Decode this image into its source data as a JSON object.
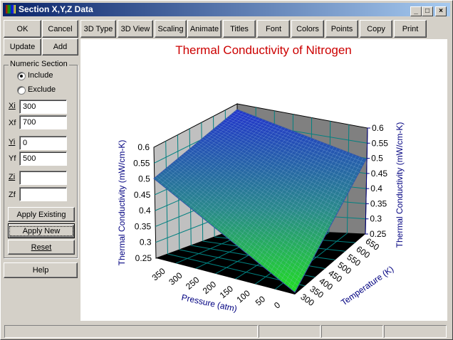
{
  "window": {
    "title": "Section X,Y,Z Data",
    "minimize": "_",
    "maximize": "□",
    "close": "×"
  },
  "left": {
    "ok": "OK",
    "cancel": "Cancel",
    "update": "Update",
    "add": "Add",
    "group_label": "Numeric Section",
    "include": "Include",
    "exclude": "Exclude",
    "include_selected": true,
    "fields": [
      {
        "label": "Xi",
        "value": "300"
      },
      {
        "label": "Xf",
        "value": "700"
      },
      {
        "label": "Yi",
        "value": "0"
      },
      {
        "label": "Yf",
        "value": "500"
      },
      {
        "label": "Zi",
        "value": ""
      },
      {
        "label": "Zf",
        "value": ""
      }
    ],
    "apply_existing": "Apply Existing",
    "apply_new": "Apply New",
    "reset": "Reset",
    "help": "Help"
  },
  "toolbar": [
    "3D Type",
    "3D View",
    "Scaling",
    "Animate",
    "Titles",
    "Font",
    "Colors",
    "Points",
    "Copy",
    "Print"
  ],
  "chart_data": {
    "type": "surface3d",
    "title": "Thermal Conductivity of Nitrogen",
    "title_color": "#cc0000",
    "xlabel": "Pressure (atm)",
    "ylabel": "Temperature (K)",
    "zlabel": "Thermal Conductivity (mW/cm-K)",
    "x_ticks": [
      "350",
      "300",
      "250",
      "200",
      "150",
      "100",
      "50",
      "0"
    ],
    "y_ticks": [
      "300",
      "350",
      "400",
      "450",
      "500",
      "550",
      "600",
      "650"
    ],
    "z_ticks": [
      "0.25",
      "0.3",
      "0.35",
      "0.4",
      "0.45",
      "0.5",
      "0.55",
      "0.6"
    ],
    "xlim": [
      0,
      375
    ],
    "ylim": [
      300,
      660
    ],
    "zlim": [
      0.25,
      0.6
    ],
    "corner_values": {
      "p0_t300": 0.25,
      "p375_t300": 0.5,
      "p375_t660": 0.6,
      "p0_t660": 0.47
    },
    "colors": {
      "low": "#22dd22",
      "high": "#2233cc",
      "walls": "#c0c0c0",
      "floor": "#000000",
      "grid": "#008080"
    }
  }
}
